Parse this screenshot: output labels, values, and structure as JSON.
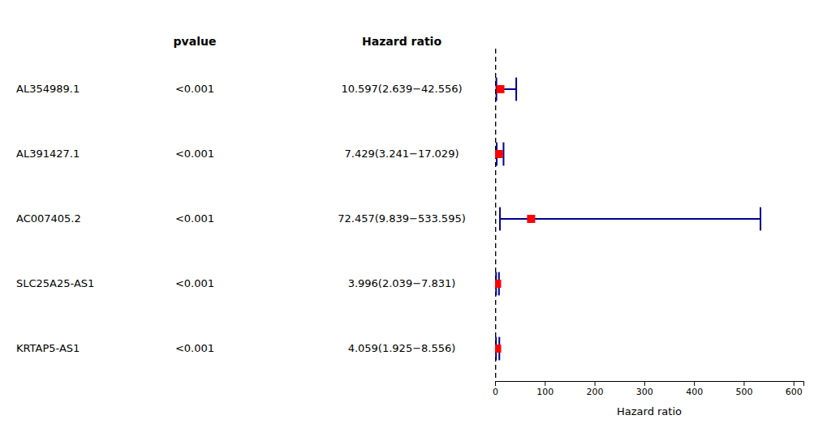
{
  "chart_data": {
    "type": "forest",
    "categories": [
      "AL354989.1",
      "AL391427.1",
      "AC007405.2",
      "SLC25A25-AS1",
      "KRTAP5-AS1"
    ],
    "values": [
      10.597,
      7.429,
      72.457,
      3.996,
      4.059
    ],
    "value_labels": [
      "10.597(2.639−42.556)",
      "7.429(3.241−17.029)",
      "72.457(9.839−533.595)",
      "3.996(2.039−7.831)",
      "4.059(1.925−8.556)"
    ],
    "error": {
      "low": [
        2.639,
        3.241,
        9.839,
        2.039,
        1.925
      ],
      "high": [
        42.556,
        17.029,
        533.595,
        7.831,
        8.556
      ],
      "color": "#00008B"
    },
    "pvalues": [
      "<0.001",
      "<0.001",
      "<0.001",
      "<0.001",
      "<0.001"
    ],
    "pvalue_header": "pvalue",
    "value_header": "Hazard ratio",
    "reference_x": 1,
    "xlabel": "Hazard ratio",
    "xlim": [
      0,
      620
    ],
    "xticks": [
      0,
      100,
      200,
      300,
      400,
      500,
      600
    ],
    "color": "#FF0000",
    "grid": false
  }
}
